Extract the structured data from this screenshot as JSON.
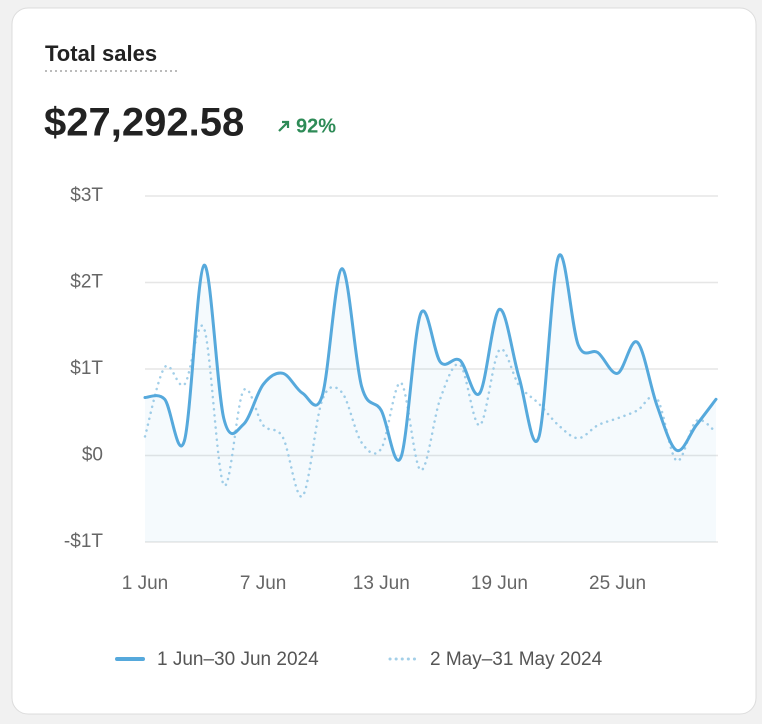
{
  "card": {
    "title": "Total sales",
    "value": "$27,292.58",
    "change": "92%"
  },
  "chart_data": {
    "type": "line",
    "x": [
      1,
      2,
      3,
      4,
      5,
      6,
      7,
      8,
      9,
      10,
      11,
      12,
      13,
      14,
      15,
      16,
      17,
      18,
      19,
      20,
      21,
      22,
      23,
      24,
      25,
      26,
      27,
      28,
      29,
      30
    ],
    "xlim": [
      1,
      30
    ],
    "xticks": [
      {
        "value": 1,
        "label": "1 Jun"
      },
      {
        "value": 7,
        "label": "7 Jun"
      },
      {
        "value": 13,
        "label": "13 Jun"
      },
      {
        "value": 19,
        "label": "19 Jun"
      },
      {
        "value": 25,
        "label": "25 Jun"
      }
    ],
    "ylim": [
      -1,
      3
    ],
    "yticks": [
      {
        "value": -1,
        "label": "-$1T"
      },
      {
        "value": 0,
        "label": "$0"
      },
      {
        "value": 1,
        "label": "$1T"
      },
      {
        "value": 2,
        "label": "$2T"
      },
      {
        "value": 3,
        "label": "$3T"
      }
    ],
    "grid": true,
    "series": [
      {
        "name": "1 Jun–30 Jun 2024",
        "color": "#56a9dc",
        "style": "solid",
        "values": [
          0.67,
          0.65,
          0.17,
          2.2,
          0.43,
          0.36,
          0.82,
          0.95,
          0.72,
          0.69,
          2.16,
          0.8,
          0.52,
          -0.02,
          1.64,
          1.08,
          1.1,
          0.72,
          1.69,
          0.9,
          0.21,
          2.3,
          1.28,
          1.19,
          0.95,
          1.31,
          0.58,
          0.06,
          0.35,
          0.65
        ]
      },
      {
        "name": "2 May–31 May 2024",
        "color": "#a3cfe8",
        "style": "dotted",
        "values": [
          0.22,
          1.02,
          0.82,
          1.47,
          -0.34,
          0.75,
          0.35,
          0.21,
          -0.47,
          0.64,
          0.73,
          0.15,
          0.08,
          0.84,
          -0.17,
          0.66,
          1.05,
          0.35,
          1.22,
          0.81,
          0.6,
          0.35,
          0.2,
          0.35,
          0.43,
          0.52,
          0.66,
          -0.06,
          0.4,
          0.27
        ]
      }
    ]
  }
}
